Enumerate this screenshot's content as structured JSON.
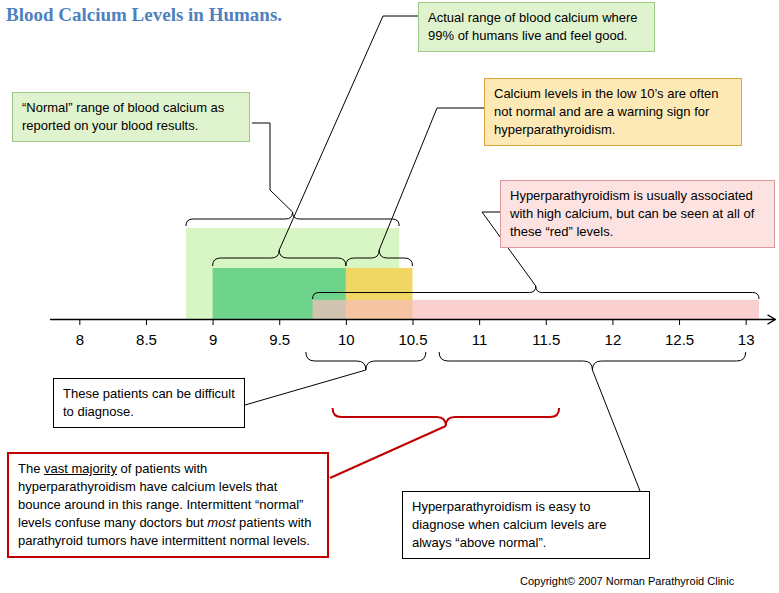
{
  "chart_data": {
    "type": "range",
    "title": "Blood Calcium Levels in Humans.",
    "xlim": [
      7.78,
      13.22
    ],
    "xticks": [
      8,
      8.5,
      9,
      9.5,
      10,
      10.5,
      11,
      11.5,
      12,
      12.5,
      13
    ],
    "tick_labels": "x",
    "bands": [
      {
        "from": 8.8,
        "to": 10.4,
        "color": "#d8f5c4"
      },
      {
        "from": 9,
        "to": 10,
        "color": "#6ed48c"
      },
      {
        "from": 10,
        "to": 10.5,
        "color": "#f0d662"
      },
      {
        "from": 9.75,
        "to": 13.1,
        "color": "#f7bcbc"
      }
    ],
    "annotations": [
      {
        "text": "“Normal” range of blood calcium as reported on your blood results.",
        "range": [
          8.8,
          10.4
        ]
      },
      {
        "text": "Actual range of blood calcium where 99% of humans live and feel good.",
        "range": [
          9,
          10
        ]
      },
      {
        "text": "Calcium levels in the low 10’s are often not normal and are a warning sign for hyperparathyroidism.",
        "range": [
          10,
          10.5
        ]
      },
      {
        "text": "Hyperparathyroidism is usually associated with high calcium, but can be seen at all of these “red” levels.",
        "range": [
          9.75,
          13.1
        ]
      },
      {
        "text": "These patients can be difficult to diagnose.",
        "range": [
          9.7,
          10.6
        ]
      },
      {
        "text": "Hyperparathyroidism is easy to diagnose when calcium levels are always “above normal”.",
        "range": [
          10.7,
          13
        ]
      },
      {
        "text": "The vast majority of patients with hyperparathyroidism have calcium levels that bounce around in this range. Intermittent “normal” levels confuse many doctors but most patients with parathyroid tumors have intermittent normal levels.",
        "range": [
          9.9,
          11.6
        ],
        "emphasis": {
          "underline": "vast majority",
          "italic": "most"
        }
      }
    ],
    "copyright": "Copyright© 2007 Norman Parathyroid Clinic"
  }
}
